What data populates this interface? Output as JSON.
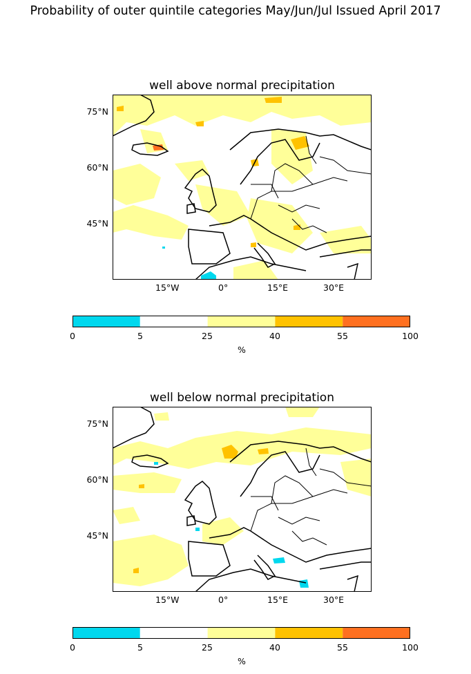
{
  "suptitle": "Probability of outer quintile categories May/Jun/Jul Issued April 2017",
  "panels": [
    {
      "title": "well above normal precipitation"
    },
    {
      "title": "well below normal precipitation"
    }
  ],
  "lat_labels": [
    "75°N",
    "60°N",
    "45°N"
  ],
  "lon_labels": [
    "15°W",
    "0°",
    "15°E",
    "30°E"
  ],
  "colorbar": {
    "ticks": [
      "0",
      "5",
      "25",
      "40",
      "55",
      "100"
    ],
    "unit": "%",
    "colors": [
      "#00d8ee",
      "#ffffff",
      "#ffff99",
      "#ffc200",
      "#ff7020"
    ]
  },
  "colors": {
    "cyan": "#00d8ee",
    "white": "#ffffff",
    "light_yellow": "#ffff99",
    "gold": "#ffc200",
    "orange": "#ff7020"
  }
}
